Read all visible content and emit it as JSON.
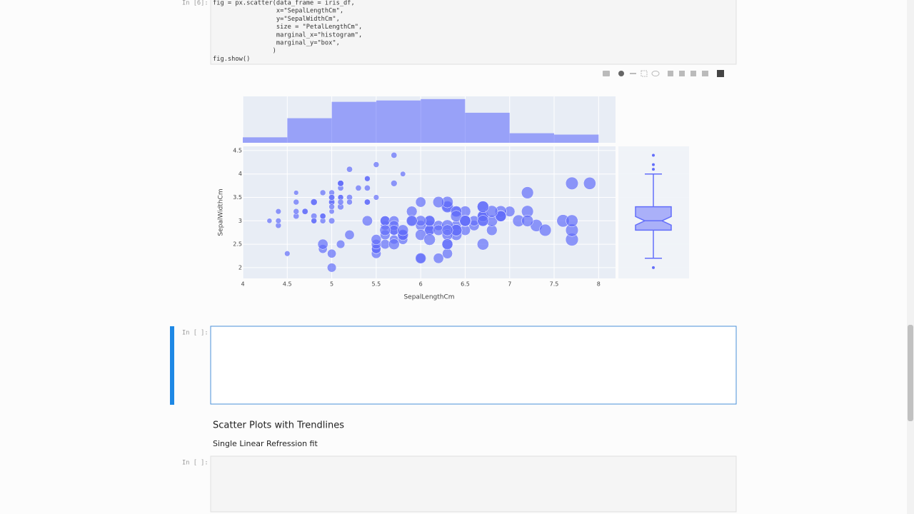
{
  "notebook": {
    "code_prompt": "In [6]:",
    "code_lines": [
      "fig = px.scatter(data_frame = iris_df,",
      "                 x=\"SepalLengthCm\",",
      "                 y=\"SepalWidthCm\",",
      "                 size = \"PetalLengthCm\",",
      "                 marginal_x=\"histogram\",",
      "                 marginal_y=\"box\",",
      "                )",
      "fig.show()"
    ],
    "empty_prompt": "In [ ]:",
    "heading": "Scatter Plots with Trendlines",
    "subheading": "Single Linear Refression fit",
    "last_prompt": "In [ ]:"
  },
  "chart_data": {
    "type": "scatter",
    "xlabel": "SepalLengthCm",
    "ylabel": "SepalWidthCm",
    "color": "#636efa",
    "grid": true,
    "xlim": [
      4,
      8.19
    ],
    "xticks": [
      4,
      4.5,
      5,
      5.5,
      6,
      6.5,
      7,
      7.5,
      8
    ],
    "ylim": [
      1.77,
      4.59
    ],
    "yticks": [
      2,
      2.5,
      3,
      3.5,
      4,
      4.5
    ],
    "x": [
      5.1,
      4.9,
      4.7,
      4.6,
      5.0,
      5.4,
      4.6,
      5.0,
      4.4,
      4.9,
      5.4,
      4.8,
      4.8,
      4.3,
      5.8,
      5.7,
      5.4,
      5.1,
      5.7,
      5.1,
      5.4,
      5.1,
      4.6,
      5.1,
      4.8,
      5.0,
      5.0,
      5.2,
      5.2,
      4.7,
      4.8,
      5.4,
      5.2,
      5.5,
      4.9,
      5.0,
      5.5,
      4.9,
      4.4,
      5.1,
      5.0,
      4.5,
      4.4,
      5.0,
      5.1,
      4.8,
      5.1,
      4.6,
      5.3,
      5.0,
      7.0,
      6.4,
      6.9,
      5.5,
      6.5,
      5.7,
      6.3,
      4.9,
      6.6,
      5.2,
      5.0,
      5.9,
      6.0,
      6.1,
      5.6,
      6.7,
      5.6,
      5.8,
      6.2,
      5.6,
      5.9,
      6.1,
      6.3,
      6.1,
      6.4,
      6.6,
      6.8,
      6.7,
      6.0,
      5.7,
      5.5,
      5.5,
      5.8,
      6.0,
      5.4,
      6.0,
      6.7,
      6.3,
      5.6,
      5.5,
      5.5,
      6.1,
      5.8,
      5.0,
      5.6,
      5.7,
      5.7,
      6.2,
      5.1,
      5.7,
      6.3,
      5.8,
      7.1,
      6.3,
      6.5,
      7.6,
      4.9,
      7.3,
      6.7,
      7.2,
      6.5,
      6.4,
      6.8,
      5.7,
      5.8,
      6.4,
      6.5,
      7.7,
      7.7,
      6.0,
      6.9,
      5.6,
      7.7,
      6.3,
      6.7,
      7.2,
      6.2,
      6.1,
      6.4,
      7.2,
      7.4,
      7.9,
      6.4,
      6.3,
      6.1,
      7.7,
      6.3,
      6.4,
      6.0,
      6.9,
      6.7,
      6.9,
      6.8,
      6.7,
      6.7,
      6.3,
      6.5,
      6.2,
      5.9
    ],
    "y": [
      3.5,
      3.0,
      3.2,
      3.1,
      3.6,
      3.9,
      3.4,
      3.4,
      2.9,
      3.1,
      3.7,
      3.4,
      3.0,
      3.0,
      4.0,
      4.4,
      3.9,
      3.5,
      3.8,
      3.8,
      3.4,
      3.7,
      3.6,
      3.3,
      3.4,
      3.0,
      3.4,
      3.5,
      3.4,
      3.2,
      3.1,
      3.4,
      4.1,
      4.2,
      3.1,
      3.2,
      3.5,
      3.6,
      3.0,
      3.4,
      3.5,
      2.3,
      3.2,
      3.5,
      3.8,
      3.0,
      3.8,
      3.2,
      3.7,
      3.3,
      3.2,
      3.2,
      3.1,
      2.3,
      2.8,
      2.8,
      3.3,
      2.4,
      2.9,
      2.7,
      2.0,
      3.0,
      2.2,
      2.9,
      2.9,
      3.1,
      3.0,
      2.7,
      2.2,
      2.5,
      3.2,
      2.8,
      2.5,
      2.8,
      2.9,
      3.0,
      2.8,
      3.0,
      2.9,
      2.6,
      2.4,
      2.4,
      2.7,
      2.7,
      3.0,
      3.4,
      3.1,
      2.3,
      3.0,
      2.5,
      2.6,
      3.0,
      2.6,
      2.3,
      2.7,
      3.0,
      2.9,
      2.9,
      2.5,
      2.8,
      3.3,
      2.7,
      3.0,
      2.9,
      3.0,
      3.0,
      2.5,
      2.9,
      2.5,
      3.6,
      3.2,
      2.7,
      3.0,
      2.5,
      2.8,
      3.2,
      3.0,
      3.8,
      2.6,
      2.2,
      3.2,
      2.8,
      2.8,
      2.7,
      3.3,
      3.2,
      2.8,
      3.0,
      2.8,
      3.0,
      2.8,
      3.8,
      2.8,
      2.8,
      2.6,
      3.0,
      3.4,
      3.1,
      3.0,
      3.1,
      3.1,
      3.1,
      3.2,
      3.3,
      3.0,
      2.5,
      3.0,
      3.4,
      3.0
    ],
    "sizes": [
      1.4,
      1.4,
      1.3,
      1.5,
      1.4,
      1.7,
      1.4,
      1.5,
      1.4,
      1.5,
      1.5,
      1.6,
      1.4,
      1.1,
      1.2,
      1.5,
      1.3,
      1.4,
      1.7,
      1.5,
      1.7,
      1.5,
      1.0,
      1.7,
      1.9,
      1.6,
      1.6,
      1.5,
      1.4,
      1.6,
      1.6,
      1.5,
      1.5,
      1.4,
      1.5,
      1.2,
      1.3,
      1.4,
      1.3,
      1.5,
      1.3,
      1.3,
      1.3,
      1.6,
      1.9,
      1.4,
      1.6,
      1.4,
      1.5,
      1.4,
      4.7,
      4.5,
      4.9,
      4.0,
      4.6,
      4.5,
      4.7,
      3.3,
      4.6,
      3.9,
      3.5,
      4.2,
      4.0,
      4.7,
      3.6,
      4.4,
      4.5,
      4.1,
      4.5,
      3.9,
      4.8,
      4.0,
      4.9,
      4.7,
      4.3,
      4.4,
      4.8,
      5.0,
      4.5,
      3.5,
      3.8,
      3.7,
      3.9,
      5.1,
      4.5,
      4.5,
      4.7,
      4.4,
      4.1,
      4.0,
      4.4,
      4.6,
      4.0,
      3.3,
      4.2,
      4.2,
      4.2,
      4.3,
      3.0,
      4.1,
      6.0,
      5.1,
      5.9,
      5.6,
      5.8,
      6.6,
      4.5,
      6.3,
      5.8,
      6.1,
      5.1,
      5.3,
      5.5,
      5.0,
      5.1,
      5.3,
      5.5,
      6.7,
      6.9,
      5.0,
      5.7,
      4.9,
      6.7,
      4.9,
      5.7,
      6.0,
      4.8,
      4.9,
      5.6,
      5.8,
      6.1,
      6.4,
      5.6,
      5.1,
      5.6,
      6.1,
      5.6,
      5.5,
      4.8,
      5.4,
      5.6,
      5.1,
      5.9,
      5.7,
      5.2,
      5.0,
      5.2,
      5.4,
      5.1
    ],
    "marginal_x": {
      "type": "histogram",
      "bins": [
        4,
        4.5,
        5,
        5.5,
        6,
        6.5,
        7,
        7.5,
        8
      ],
      "counts": [
        4,
        18,
        30,
        31,
        32,
        22,
        7,
        6
      ],
      "ylim": [
        0,
        34
      ]
    },
    "marginal_y": {
      "type": "box",
      "min": 2.2,
      "q1": 2.8,
      "median": 3.0,
      "q3": 3.3,
      "max": 4.0,
      "outliers": [
        4.1,
        4.2,
        4.4,
        2.0
      ]
    }
  }
}
